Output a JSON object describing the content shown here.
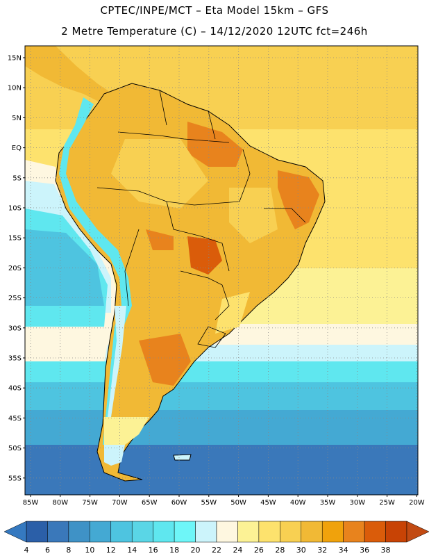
{
  "title_line1": "CPTEC/INPE/MCT –  Eta Model 15km – GFS",
  "title_line2": "2 Metre Temperature (C) – 14/12/2020 12UTC fct=246h",
  "lat_labels": [
    "15N",
    "10N",
    "5N",
    "EQ",
    "5S",
    "10S",
    "15S",
    "20S",
    "25S",
    "30S",
    "35S",
    "40S",
    "45S",
    "50S",
    "55S"
  ],
  "lon_labels": [
    "85W",
    "80W",
    "75W",
    "70W",
    "65W",
    "60W",
    "55W",
    "50W",
    "45W",
    "40W",
    "35W",
    "30W",
    "25W",
    "20W"
  ],
  "colorbar": {
    "labels": [
      "4",
      "6",
      "8",
      "10",
      "12",
      "14",
      "16",
      "18",
      "20",
      "22",
      "24",
      "26",
      "28",
      "30",
      "32",
      "34",
      "36",
      "38"
    ],
    "colors": [
      "#2b5fa8",
      "#3a78ba",
      "#3f92c6",
      "#44a9d3",
      "#4ec4e0",
      "#5ad6e6",
      "#5fe7ef",
      "#6ef6f8",
      "#ccf4fb",
      "#fef7e0",
      "#fcf295",
      "#fde26d",
      "#f8d052",
      "#f1b935",
      "#f0a20c",
      "#e8831d",
      "#da5c0a",
      "#c84305"
    ],
    "low_color": "#3579c0",
    "high_color": "#c24a12"
  }
}
